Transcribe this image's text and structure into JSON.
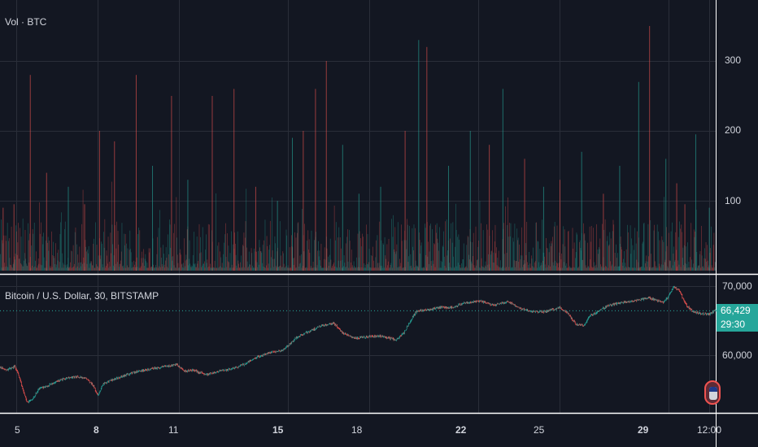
{
  "colors": {
    "background": "#131722",
    "grid": "#2a2e39",
    "separator": "#ffffff",
    "up": "#26a69a",
    "down": "#ef5350",
    "text": "#d1d4dc"
  },
  "volume_pane": {
    "title": "Vol · BTC",
    "y_ticks": [
      "300",
      "200",
      "100"
    ]
  },
  "price_pane": {
    "title": "Bitcoin / U.S. Dollar, 30, BITSTAMP",
    "y_ticks": [
      "70,000",
      "60,000"
    ],
    "last_price": "66,429",
    "countdown": "29:30"
  },
  "time_axis": {
    "labels": [
      {
        "text": "5",
        "bold": false
      },
      {
        "text": "8",
        "bold": true
      },
      {
        "text": "11",
        "bold": false
      },
      {
        "text": "15",
        "bold": true
      },
      {
        "text": "18",
        "bold": false
      },
      {
        "text": "22",
        "bold": true
      },
      {
        "text": "25",
        "bold": false
      },
      {
        "text": "29",
        "bold": true
      },
      {
        "text": "12:00",
        "bold": false
      }
    ]
  },
  "chart_data": [
    {
      "type": "bar",
      "title": "Vol · BTC",
      "ylim": [
        0,
        380
      ],
      "y_ticks": [
        100,
        200,
        300
      ],
      "grid": true,
      "x_range_days": [
        4.4,
        30.75
      ],
      "description_note": "",
      "spikes": [
        {
          "day": 4.5,
          "value": 90,
          "dir": "down"
        },
        {
          "day": 4.9,
          "value": 95,
          "dir": "down"
        },
        {
          "day": 5.5,
          "value": 280,
          "dir": "down"
        },
        {
          "day": 6.1,
          "value": 140,
          "dir": "down"
        },
        {
          "day": 6.9,
          "value": 120,
          "dir": "up"
        },
        {
          "day": 7.5,
          "value": 95,
          "dir": "down"
        },
        {
          "day": 8.05,
          "value": 200,
          "dir": "down"
        },
        {
          "day": 8.6,
          "value": 185,
          "dir": "down"
        },
        {
          "day": 9.4,
          "value": 280,
          "dir": "down"
        },
        {
          "day": 10.0,
          "value": 150,
          "dir": "up"
        },
        {
          "day": 10.7,
          "value": 250,
          "dir": "down"
        },
        {
          "day": 11.3,
          "value": 130,
          "dir": "up"
        },
        {
          "day": 12.2,
          "value": 250,
          "dir": "down"
        },
        {
          "day": 13.0,
          "value": 260,
          "dir": "down"
        },
        {
          "day": 13.8,
          "value": 120,
          "dir": "down"
        },
        {
          "day": 14.6,
          "value": 100,
          "dir": "up"
        },
        {
          "day": 15.15,
          "value": 190,
          "dir": "up"
        },
        {
          "day": 15.55,
          "value": 200,
          "dir": "down"
        },
        {
          "day": 16.0,
          "value": 260,
          "dir": "down"
        },
        {
          "day": 16.4,
          "value": 300,
          "dir": "down"
        },
        {
          "day": 17.0,
          "value": 180,
          "dir": "up"
        },
        {
          "day": 17.6,
          "value": 110,
          "dir": "up"
        },
        {
          "day": 18.4,
          "value": 120,
          "dir": "up"
        },
        {
          "day": 19.3,
          "value": 200,
          "dir": "down"
        },
        {
          "day": 19.8,
          "value": 330,
          "dir": "up"
        },
        {
          "day": 20.1,
          "value": 320,
          "dir": "down"
        },
        {
          "day": 20.9,
          "value": 150,
          "dir": "up"
        },
        {
          "day": 21.7,
          "value": 200,
          "dir": "up"
        },
        {
          "day": 22.4,
          "value": 180,
          "dir": "down"
        },
        {
          "day": 22.9,
          "value": 260,
          "dir": "up"
        },
        {
          "day": 23.7,
          "value": 160,
          "dir": "down"
        },
        {
          "day": 24.4,
          "value": 120,
          "dir": "up"
        },
        {
          "day": 25.0,
          "value": 130,
          "dir": "down"
        },
        {
          "day": 25.8,
          "value": 170,
          "dir": "up"
        },
        {
          "day": 26.6,
          "value": 110,
          "dir": "down"
        },
        {
          "day": 27.2,
          "value": 150,
          "dir": "up"
        },
        {
          "day": 27.9,
          "value": 270,
          "dir": "up"
        },
        {
          "day": 28.3,
          "value": 350,
          "dir": "down"
        },
        {
          "day": 28.9,
          "value": 160,
          "dir": "up"
        },
        {
          "day": 29.3,
          "value": 125,
          "dir": "down"
        },
        {
          "day": 29.6,
          "value": 95,
          "dir": "down"
        },
        {
          "day": 30.0,
          "value": 195,
          "dir": "up"
        },
        {
          "day": 30.5,
          "value": 90,
          "dir": "up"
        }
      ]
    },
    {
      "type": "line",
      "title": "Bitcoin / U.S. Dollar, 30, BITSTAMP",
      "ylim": [
        50400,
        71600
      ],
      "y_ticks": [
        60000,
        70000
      ],
      "grid": true,
      "x": [
        4.4,
        4.7,
        4.95,
        5.1,
        5.25,
        5.4,
        5.6,
        5.85,
        6.1,
        6.6,
        7.2,
        7.6,
        7.85,
        8.0,
        8.2,
        8.6,
        9.3,
        9.9,
        10.4,
        10.9,
        11.2,
        11.5,
        12.0,
        12.5,
        13.0,
        13.4,
        13.9,
        14.4,
        14.8,
        15.1,
        15.3,
        15.7,
        16.2,
        16.7,
        17.0,
        17.5,
        18.0,
        18.5,
        19.0,
        19.3,
        19.6,
        19.75,
        20.1,
        20.6,
        21.1,
        21.5,
        22.1,
        22.6,
        23.1,
        23.6,
        24.0,
        24.5,
        25.0,
        25.3,
        25.6,
        25.9,
        26.1,
        26.4,
        26.8,
        27.3,
        27.8,
        28.3,
        28.8,
        29.0,
        29.2,
        29.4,
        29.65,
        29.9,
        30.2,
        30.5,
        30.7
      ],
      "values": [
        58200,
        57900,
        58400,
        57000,
        54900,
        53100,
        53700,
        55200,
        55500,
        56400,
        56900,
        56600,
        55500,
        54100,
        55900,
        56500,
        57500,
        58000,
        58300,
        58600,
        57700,
        57800,
        57200,
        57700,
        58100,
        58700,
        59800,
        60400,
        60700,
        61700,
        62500,
        63300,
        64200,
        64600,
        63300,
        62400,
        62700,
        62700,
        62200,
        63400,
        65600,
        66400,
        66600,
        66900,
        66900,
        67600,
        67800,
        67200,
        67800,
        66700,
        66300,
        66300,
        66900,
        66100,
        64500,
        64300,
        65600,
        66300,
        67200,
        67600,
        67900,
        68300,
        67600,
        68400,
        69900,
        69400,
        67300,
        66300,
        66000,
        65900,
        66400
      ]
    }
  ]
}
